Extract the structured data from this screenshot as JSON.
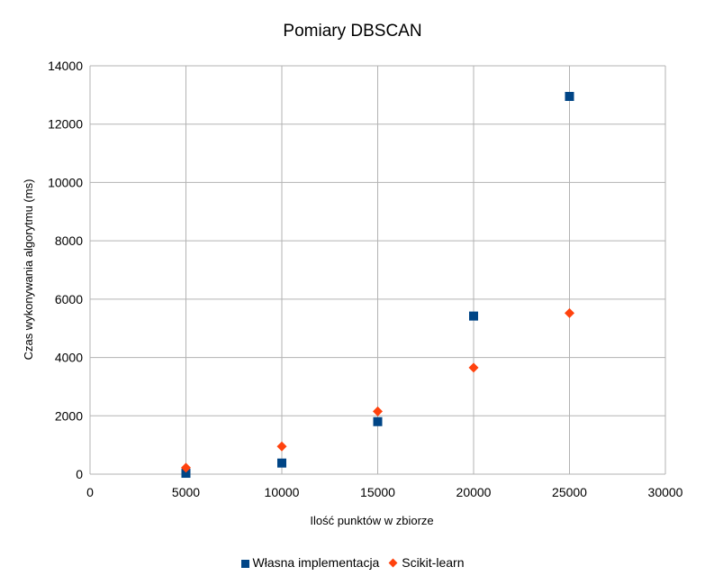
{
  "chart_data": {
    "type": "scatter",
    "title": "Pomiary DBSCAN",
    "xlabel": "Ilość punktów w zbiorze",
    "ylabel": "Czas wykonywania algorytmu (ms)",
    "xlim": [
      0,
      30000
    ],
    "ylim": [
      0,
      14000
    ],
    "xticks": [
      "0",
      "5000",
      "10000",
      "15000",
      "20000",
      "25000",
      "30000"
    ],
    "yticks": [
      "0",
      "2000",
      "4000",
      "6000",
      "8000",
      "10000",
      "12000",
      "14000"
    ],
    "grid": true,
    "legend_position": "bottom",
    "series": [
      {
        "name": "Własna implementacja",
        "marker": "square",
        "color": "#004586",
        "x": [
          5000,
          10000,
          15000,
          20000,
          25000
        ],
        "y": [
          30,
          380,
          1800,
          5420,
          12950
        ]
      },
      {
        "name": "Scikit-learn",
        "marker": "diamond",
        "color": "#ff420e",
        "x": [
          5000,
          10000,
          15000,
          20000,
          25000
        ],
        "y": [
          220,
          950,
          2150,
          3650,
          5520
        ]
      }
    ]
  }
}
